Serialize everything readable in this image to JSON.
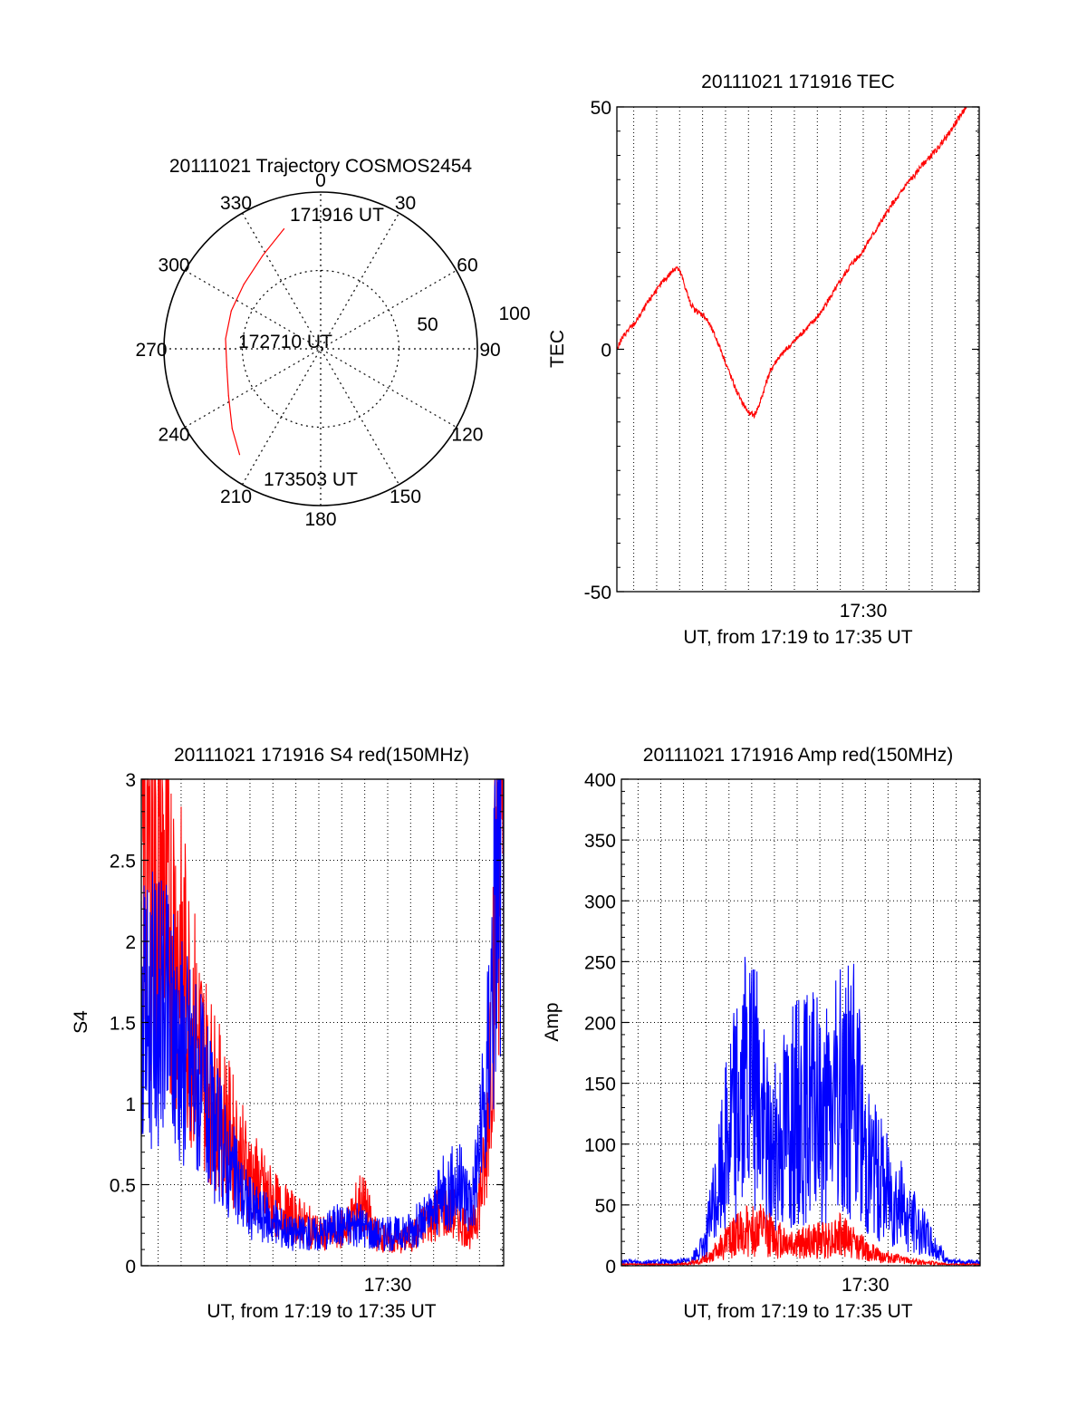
{
  "colors": {
    "series_red": "#ff0000",
    "series_blue": "#0000ff",
    "axes": "#000000",
    "grid": "#000000"
  },
  "chart_data": [
    {
      "id": "polar",
      "type": "scatter",
      "subtype": "polar-trajectory",
      "title": "20111021 Trajectory COSMOS2454",
      "azimuth_labels": [
        "0",
        "30",
        "60",
        "90",
        "120",
        "150",
        "180",
        "210",
        "240",
        "270",
        "300",
        "330"
      ],
      "radius_labels": [
        "50",
        "100"
      ],
      "radius_range": [
        0,
        100
      ],
      "grid": true,
      "annotations": [
        "171916 UT",
        "172710 UT",
        "173503 UT"
      ],
      "series": [
        {
          "color": "red",
          "points": [
            {
              "az": 343.0,
              "r": 80
            },
            {
              "az": 328.0,
              "r": 70
            },
            {
              "az": 310.0,
              "r": 64
            },
            {
              "az": 293.0,
              "r": 62
            },
            {
              "az": 276.0,
              "r": 61
            },
            {
              "az": 259.0,
              "r": 61
            },
            {
              "az": 243.0,
              "r": 66
            },
            {
              "az": 228.0,
              "r": 76
            },
            {
              "az": 217.5,
              "r": 85
            }
          ]
        }
      ]
    },
    {
      "id": "tec",
      "type": "line",
      "title": "20111021 171916 TEC",
      "ylabel": "TEC",
      "xlabel": "UT, from 17:19 to 17:35 UT",
      "x_tick_labels": [
        {
          "x": 17.5,
          "label": "17:30"
        }
      ],
      "y_tick_labels": [
        "-50",
        "0",
        "50"
      ],
      "xlim": [
        17.3211,
        17.5842
      ],
      "ylim": [
        -50,
        50
      ],
      "grid": "vertical-dotted",
      "series": [
        {
          "color": "red",
          "x": [
            17.3211,
            17.3244,
            17.3278,
            17.3311,
            17.3344,
            17.3378,
            17.3411,
            17.3444,
            17.3478,
            17.3511,
            17.3544,
            17.3578,
            17.3611,
            17.3644,
            17.3678,
            17.3711,
            17.3744,
            17.3778,
            17.3811,
            17.3844,
            17.3878,
            17.3911,
            17.3944,
            17.3978,
            17.4011,
            17.4044,
            17.4078,
            17.4111,
            17.4144,
            17.4178,
            17.4211,
            17.4244,
            17.4278,
            17.4311,
            17.4344,
            17.4378,
            17.4411,
            17.4444,
            17.4478,
            17.4511,
            17.4544,
            17.4578,
            17.4611,
            17.4644,
            17.4678,
            17.4711,
            17.4744,
            17.4778,
            17.4811,
            17.4844,
            17.4878,
            17.4911,
            17.4944,
            17.4978,
            17.5011,
            17.5044,
            17.5078,
            17.5111,
            17.5144,
            17.5178,
            17.5211,
            17.5244,
            17.5278,
            17.5311,
            17.5344,
            17.5378,
            17.5411,
            17.5444,
            17.5478,
            17.5511,
            17.5544,
            17.5578,
            17.5611,
            17.5644,
            17.5678,
            17.5711,
            17.5744,
            17.5778,
            17.5811,
            17.5842
          ],
          "y": [
            0,
            2,
            3.5,
            4.5,
            5.5,
            7,
            8.5,
            10,
            11.5,
            12.5,
            14,
            15,
            16,
            17,
            15.5,
            12.5,
            9.5,
            8,
            7.5,
            7,
            5.5,
            3.5,
            1.5,
            -1,
            -3.5,
            -6,
            -8.5,
            -10.5,
            -12,
            -13.5,
            -13.5,
            -11.5,
            -8.5,
            -5.5,
            -3.5,
            -2,
            -1,
            0,
            1,
            2,
            3,
            4,
            5,
            6,
            7,
            8.5,
            10,
            11.5,
            13,
            14.5,
            16,
            17.5,
            18.5,
            19.5,
            21,
            22.5,
            24,
            25.5,
            27,
            28.5,
            30,
            31,
            32.5,
            34,
            35,
            36,
            37.5,
            38.5,
            39.5,
            40.5,
            41.5,
            43,
            44,
            45.5,
            47,
            48.5,
            50,
            51,
            51.5,
            51.5
          ]
        }
      ]
    },
    {
      "id": "s4",
      "type": "line",
      "title": "20111021 171916 S4 red(150MHz)",
      "ylabel": "S4",
      "xlabel": "UT, from 17:19 to 17:35 UT",
      "x_tick_labels": [
        {
          "x": 17.5,
          "label": "17:30"
        }
      ],
      "y_tick_labels": [
        "0",
        "0.5",
        "1",
        "1.5",
        "2",
        "2.5",
        "3"
      ],
      "xlim": [
        17.3211,
        17.5842
      ],
      "ylim": [
        0,
        3
      ],
      "grid": true,
      "series": [
        {
          "color": "red",
          "x": [
            17.3211,
            17.3311,
            17.3411,
            17.3511,
            17.3611,
            17.3711,
            17.3811,
            17.3911,
            17.4011,
            17.4111,
            17.4211,
            17.4311,
            17.4411,
            17.4511,
            17.4611,
            17.4711,
            17.4811,
            17.4911,
            17.5011,
            17.5111,
            17.5211,
            17.5311,
            17.5411,
            17.5511,
            17.5611,
            17.5711,
            17.5811,
            17.5842
          ],
          "y": [
            2.6,
            2.5,
            2.2,
            1.8,
            1.4,
            1.1,
            0.9,
            0.7,
            0.55,
            0.45,
            0.35,
            0.3,
            0.25,
            0.2,
            0.2,
            0.25,
            0.4,
            0.2,
            0.15,
            0.15,
            0.2,
            0.3,
            0.35,
            0.3,
            0.2,
            0.6,
            2.8,
            3.0
          ]
        },
        {
          "color": "blue",
          "x": [
            17.3211,
            17.3311,
            17.3411,
            17.3511,
            17.3611,
            17.3711,
            17.3811,
            17.3911,
            17.4011,
            17.4111,
            17.4211,
            17.4311,
            17.4411,
            17.4511,
            17.4611,
            17.4711,
            17.4811,
            17.4911,
            17.5011,
            17.5111,
            17.5211,
            17.5311,
            17.5411,
            17.5511,
            17.5611,
            17.5711,
            17.5811,
            17.5842
          ],
          "y": [
            1.5,
            1.6,
            1.5,
            1.35,
            1.2,
            0.9,
            0.7,
            0.5,
            0.35,
            0.3,
            0.25,
            0.2,
            0.2,
            0.2,
            0.25,
            0.25,
            0.25,
            0.2,
            0.2,
            0.2,
            0.25,
            0.3,
            0.45,
            0.5,
            0.4,
            1.0,
            2.7,
            3.0
          ]
        }
      ]
    },
    {
      "id": "amp",
      "type": "line",
      "title": "20111021 171916 Amp red(150MHz)",
      "ylabel": "Amp",
      "xlabel": "UT, from 17:19 to 17:35 UT",
      "x_tick_labels": [
        {
          "x": 17.5,
          "label": "17:30"
        }
      ],
      "y_tick_labels": [
        "0",
        "50",
        "100",
        "150",
        "200",
        "250",
        "300",
        "350",
        "400"
      ],
      "xlim": [
        17.3211,
        17.5842
      ],
      "ylim": [
        0,
        400
      ],
      "grid": true,
      "series": [
        {
          "color": "blue",
          "x": [
            17.3211,
            17.3311,
            17.3411,
            17.3511,
            17.3611,
            17.3711,
            17.3811,
            17.3911,
            17.4011,
            17.4111,
            17.4211,
            17.4311,
            17.4411,
            17.4511,
            17.4611,
            17.4711,
            17.4811,
            17.4911,
            17.5011,
            17.5111,
            17.5211,
            17.5311,
            17.5411,
            17.5511,
            17.5611,
            17.5711,
            17.5811,
            17.5842
          ],
          "y": [
            3,
            3,
            3,
            3,
            3,
            4,
            15,
            60,
            120,
            150,
            140,
            90,
            120,
            130,
            130,
            120,
            140,
            150,
            90,
            70,
            60,
            40,
            30,
            15,
            3,
            3,
            3,
            3
          ]
        },
        {
          "color": "red",
          "x": [
            17.3211,
            17.3311,
            17.3411,
            17.3511,
            17.3611,
            17.3711,
            17.3811,
            17.3911,
            17.4011,
            17.4111,
            17.4211,
            17.4311,
            17.4411,
            17.4511,
            17.4611,
            17.4711,
            17.4811,
            17.4911,
            17.5011,
            17.5111,
            17.5211,
            17.5311,
            17.5411,
            17.5511,
            17.5611,
            17.5711,
            17.5811,
            17.5842
          ],
          "y": [
            1,
            1,
            1,
            1,
            1,
            2,
            5,
            12,
            22,
            28,
            30,
            25,
            20,
            18,
            20,
            22,
            25,
            20,
            12,
            8,
            6,
            4,
            3,
            2,
            1,
            1,
            1,
            1
          ]
        }
      ]
    }
  ]
}
